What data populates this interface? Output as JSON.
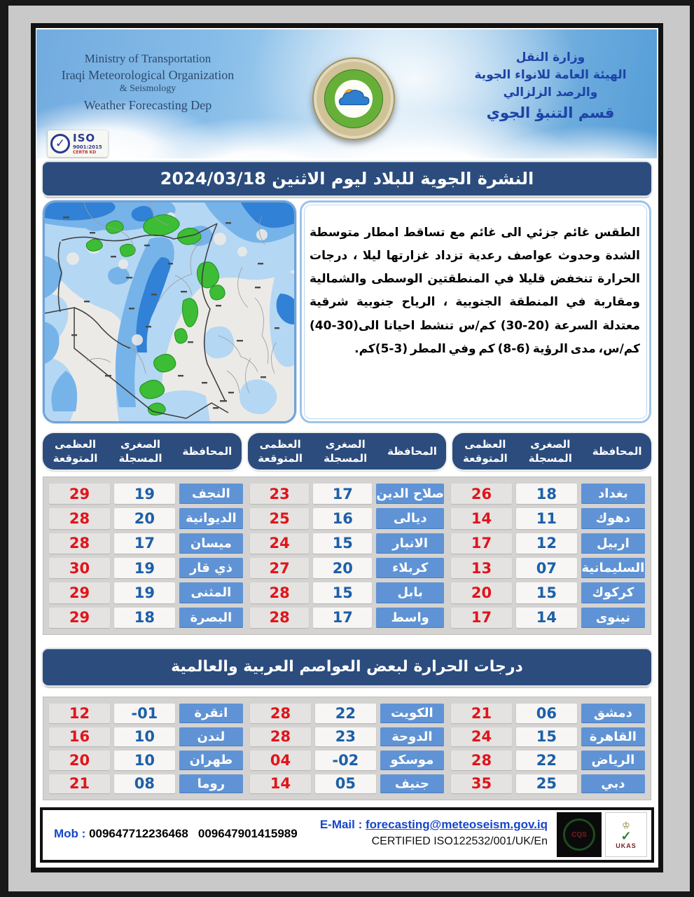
{
  "header": {
    "en_lines": [
      "Ministry of Transportation",
      "Iraqi Meteorological Organization",
      "& Seismology",
      "Weather Forecasting Dep"
    ],
    "ar_lines": [
      "وزارة النقل",
      "الهيئة العامة للانواء الجوية",
      "والرصد الزلزالي",
      "قسم التنبؤ الجوي"
    ],
    "iso_badge": {
      "title": "ISO",
      "line1": "9001:2015",
      "line2": "CERTB KD"
    }
  },
  "bulletin_banner": "النشرة الجوية للبلاد ليوم الاثنين 2024/03/18",
  "forecast_text": "الطقس غائم جزئي الى غائم مع تساقط امطار متوسطة الشدة وحدوث عواصف رعدية تزداد غزارتها ليلا ، درجات الحرارة تنخفض قليلا في المنطقتين الوسطى والشمالية ومقاربة في المنطقة الجنوبية ، الرياح جنوبية شرقية معتدلة السرعة (20-30) كم/س تنشط احيانا الى(30-40) كم/س، مدى الرؤية (6-8) كم وفي المطر (3-5)كم.",
  "table_headers": {
    "city": "المحافظة",
    "min": "الصغرى\nالمسجلة",
    "max": "العظمى\nالمتوقعة"
  },
  "iraq_table": {
    "groups": [
      [
        {
          "city": "بغداد",
          "min": "18",
          "max": "26"
        },
        {
          "city": "دهوك",
          "min": "11",
          "max": "14"
        },
        {
          "city": "اربيل",
          "min": "12",
          "max": "17"
        },
        {
          "city": "السليمانية",
          "min": "07",
          "max": "13"
        },
        {
          "city": "كركوك",
          "min": "15",
          "max": "20"
        },
        {
          "city": "نينوى",
          "min": "14",
          "max": "17"
        }
      ],
      [
        {
          "city": "صلاح الدين",
          "min": "17",
          "max": "23"
        },
        {
          "city": "ديالى",
          "min": "16",
          "max": "25"
        },
        {
          "city": "الانبار",
          "min": "15",
          "max": "24"
        },
        {
          "city": "كربلاء",
          "min": "20",
          "max": "27"
        },
        {
          "city": "بابل",
          "min": "15",
          "max": "28"
        },
        {
          "city": "واسط",
          "min": "17",
          "max": "28"
        }
      ],
      [
        {
          "city": "النجف",
          "min": "19",
          "max": "29"
        },
        {
          "city": "الديوانية",
          "min": "20",
          "max": "28"
        },
        {
          "city": "ميسان",
          "min": "17",
          "max": "28"
        },
        {
          "city": "ذي قار",
          "min": "19",
          "max": "30"
        },
        {
          "city": "المثنى",
          "min": "19",
          "max": "29"
        },
        {
          "city": "البصرة",
          "min": "18",
          "max": "29"
        }
      ]
    ]
  },
  "capitals_banner": "درجات الحرارة لبعض العواصم العربية والعالمية",
  "capitals_table": {
    "groups": [
      [
        {
          "city": "دمشق",
          "min": "06",
          "max": "21"
        },
        {
          "city": "القاهرة",
          "min": "15",
          "max": "24"
        },
        {
          "city": "الرياض",
          "min": "22",
          "max": "28"
        },
        {
          "city": "دبي",
          "min": "25",
          "max": "35"
        }
      ],
      [
        {
          "city": "الكويت",
          "min": "22",
          "max": "28"
        },
        {
          "city": "الدوحة",
          "min": "23",
          "max": "28"
        },
        {
          "city": "موسكو",
          "min": "-02",
          "max": "04"
        },
        {
          "city": "جنيف",
          "min": "05",
          "max": "14"
        }
      ],
      [
        {
          "city": "انقرة",
          "min": "-01",
          "max": "12"
        },
        {
          "city": "لندن",
          "min": "10",
          "max": "16"
        },
        {
          "city": "طهران",
          "min": "10",
          "max": "20"
        },
        {
          "city": "روما",
          "min": "08",
          "max": "21"
        }
      ]
    ]
  },
  "footer": {
    "mob_label": "Mob :",
    "mob_number1": "009647712236468",
    "mob_number2": "009647901415989",
    "email_label": "E-Mail :",
    "email": "forecasting@meteoseism.gov.iq",
    "certified": "CERTIFIED ISO122532/001/UK/En",
    "ukas_label": "UKAS"
  },
  "colors": {
    "banner_navy": "#2b4c7d",
    "city_cell_blue": "#5f93d5",
    "min_blue": "#1c5fa8",
    "max_red": "#e0151b"
  }
}
